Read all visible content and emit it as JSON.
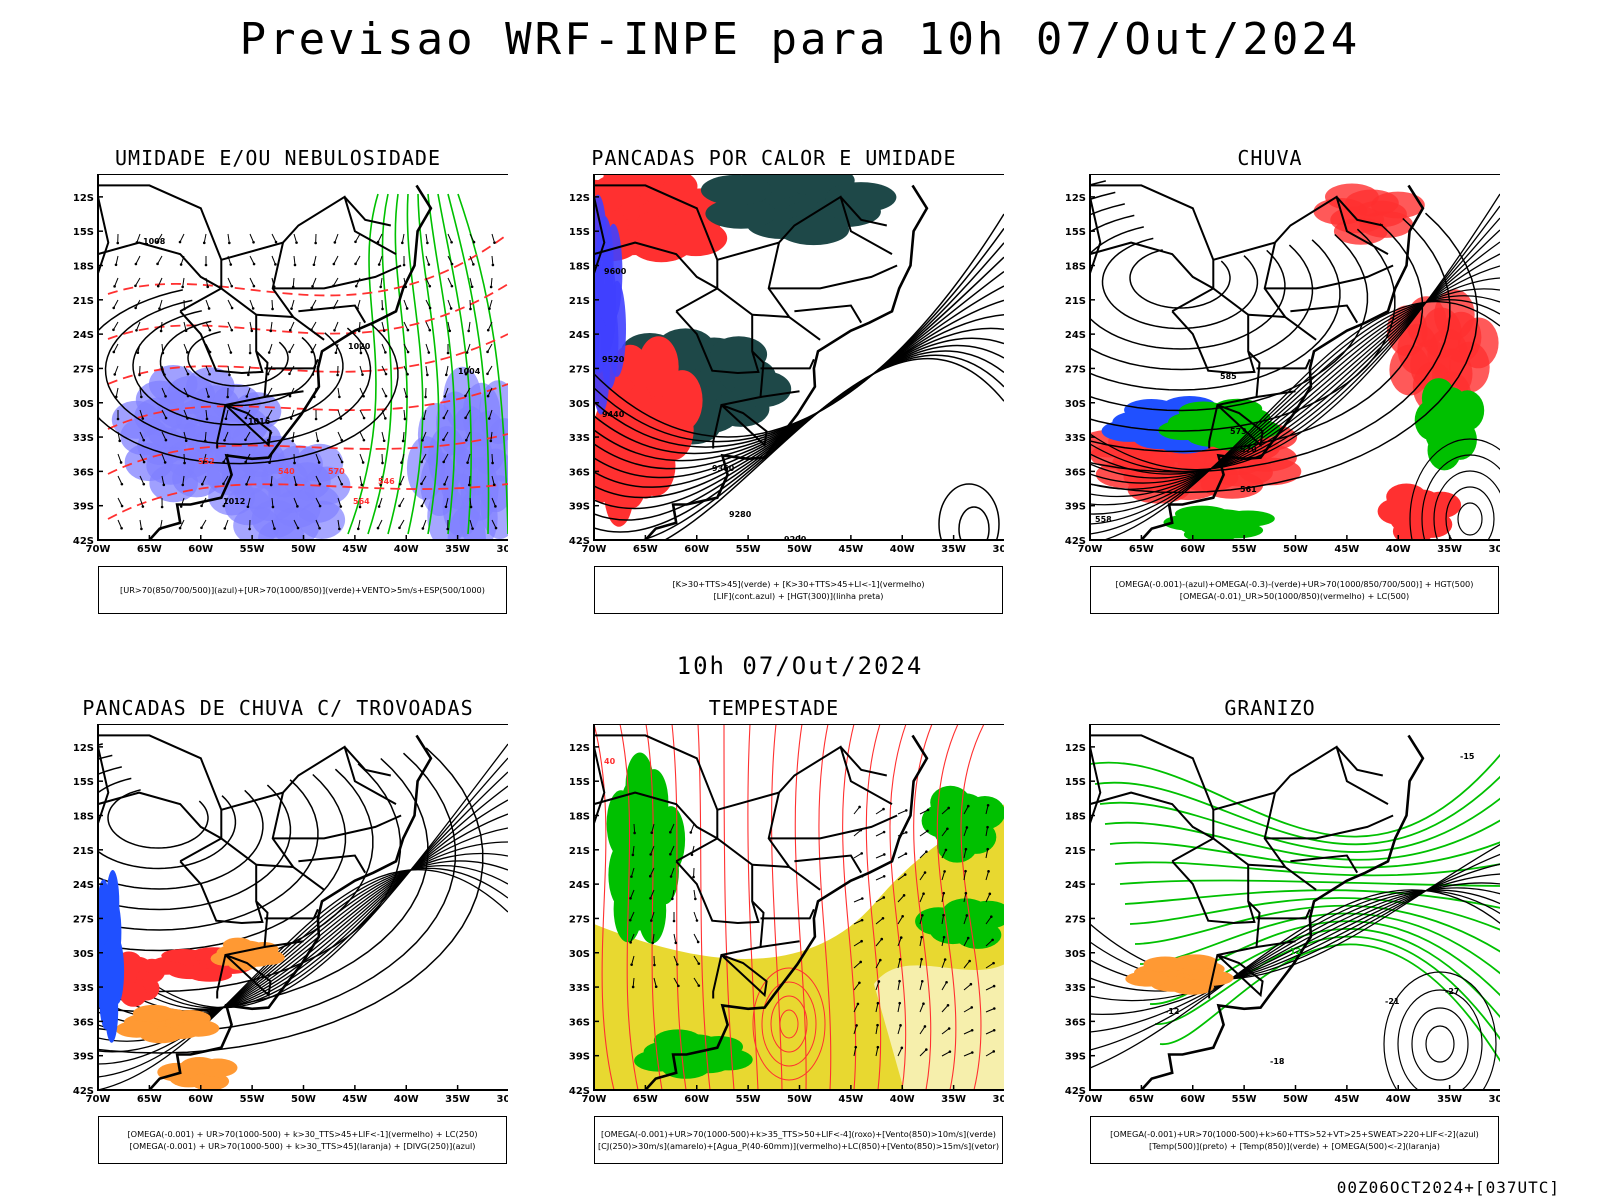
{
  "title": "Previsao WRF-INPE  para 10h 07/Out/2024",
  "mid_stamp": "10h 07/Out/2024",
  "run_stamp": "00Z06OCT2024+[037UTC]",
  "lat_ticks": [
    "12S",
    "15S",
    "18S",
    "21S",
    "24S",
    "27S",
    "30S",
    "33S",
    "36S",
    "39S",
    "42S"
  ],
  "lon_ticks": [
    "70W",
    "65W",
    "60W",
    "55W",
    "50W",
    "45W",
    "40W",
    "35W",
    "30W"
  ],
  "colors": {
    "blue": "#8080ff",
    "red": "#ff3030",
    "green": "#00c000",
    "yellow": "#e8d830",
    "dark": "#1e4848",
    "orange": "#ff9933"
  },
  "panels": [
    {
      "id": "umidade",
      "title": "UMIDADE E/OU NEBULOSIDADE",
      "legend": [
        "[UR>70(850/700/500)](azul)+[UR>70(1000/850)](verde)+VENTO>5m/s+ESP(500/1000)"
      ],
      "contour_labels": [
        "1008",
        "1012",
        "1016",
        "1020",
        "1004",
        "564",
        "570",
        "552",
        "540",
        "546"
      ]
    },
    {
      "id": "pancadas_calor",
      "title": "PANCADAS POR CALOR E UMIDADE",
      "legend": [
        "[K>30+TTS>45](verde) + [K>30+TTS>45+LI<-1](vermelho)",
        "[LIF](cont.azul) + [HGT(300)](linha preta)"
      ],
      "contour_labels": [
        "9600",
        "9520",
        "9440",
        "9360",
        "9280",
        "9200"
      ]
    },
    {
      "id": "chuva",
      "title": "CHUVA",
      "legend": [
        "[OMEGA(-0.001)-(azul)+OMEGA(-0.3)-(verde)+UR>70(1000/850/700/500)] + HGT(500)",
        "[OMEGA(-0.01)_UR>50(1000/850)(vermelho) + LC(500)"
      ],
      "contour_labels": [
        "585",
        "573",
        "570",
        "561",
        "558"
      ]
    },
    {
      "id": "trovoadas",
      "title": "PANCADAS DE CHUVA C/ TROVOADAS",
      "legend": [
        "[OMEGA(-0.001) + UR>70(1000-500) + k>30_TTS>45+LIF<-1](vermelho) + LC(250)",
        "[OMEGA(-0.001) + UR>70(1000-500) + k>30_TTS>45](laranja) + [DIVG(250)](azul)"
      ],
      "contour_labels": []
    },
    {
      "id": "tempestade",
      "title": "TEMPESTADE",
      "legend": [
        "[OMEGA(-0.001)+UR>70(1000-500)+k>35_TTS>50+LIF<-4](roxo)+[Vento(850)>10m/s](verde)",
        "[CJ(250)>30m/s](amarelo)+[Agua_P(40-60mm)](vermelho)+LC(850)+[Vento(850)>15m/s](vetor)"
      ],
      "contour_labels": [
        "40"
      ]
    },
    {
      "id": "granizo",
      "title": "GRANIZO",
      "legend": [
        "[OMEGA(-0.001)+UR>70(1000-500)+k>60+TTS>52+VT>25+SWEAT>220+LIF<-2](azul)",
        "[Temp(500)](preto) + [Temp(850)](verde) + [OMEGA(500)<-2](laranja)"
      ],
      "contour_labels": [
        "-12",
        "-18",
        "-21",
        "-27",
        "-15",
        "12"
      ]
    }
  ]
}
